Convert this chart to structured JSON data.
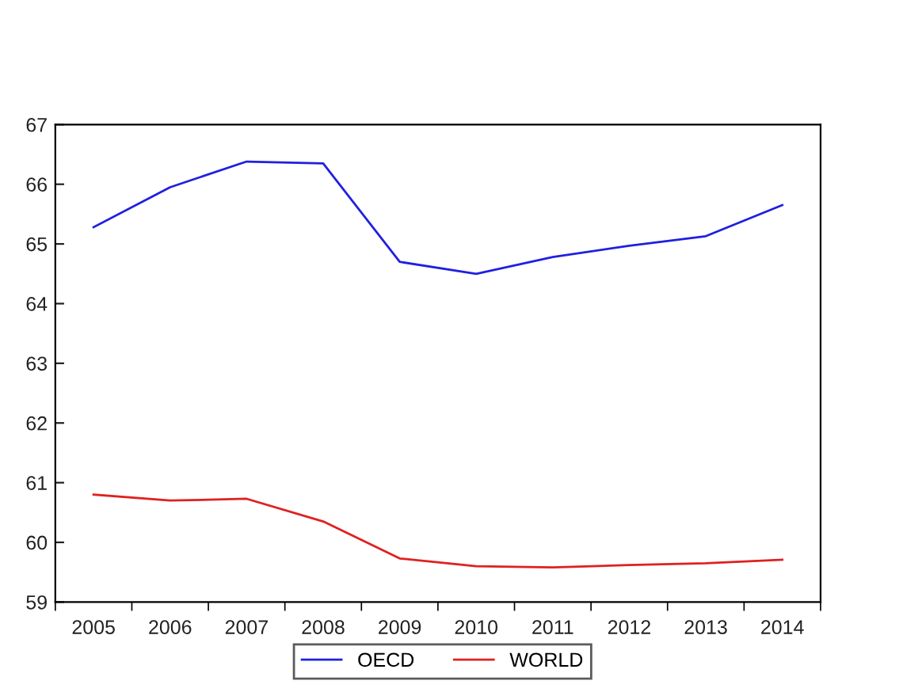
{
  "chart_data": {
    "type": "line",
    "categories": [
      "2005",
      "2006",
      "2007",
      "2008",
      "2009",
      "2010",
      "2011",
      "2012",
      "2013",
      "2014"
    ],
    "series": [
      {
        "name": "OECD",
        "color": "#2020e0",
        "values": [
          65.28,
          65.95,
          66.38,
          66.35,
          64.7,
          64.5,
          64.78,
          64.97,
          65.13,
          65.65
        ]
      },
      {
        "name": "WORLD",
        "color": "#e02020",
        "values": [
          60.8,
          60.7,
          60.73,
          60.35,
          59.73,
          59.6,
          59.58,
          59.62,
          59.65,
          59.71
        ]
      }
    ],
    "ylim": [
      59,
      67
    ],
    "yticks": [
      59,
      60,
      61,
      62,
      63,
      64,
      65,
      66,
      67
    ],
    "grid": false,
    "legend": "bottom",
    "marker": "none",
    "line_style": "solid"
  }
}
